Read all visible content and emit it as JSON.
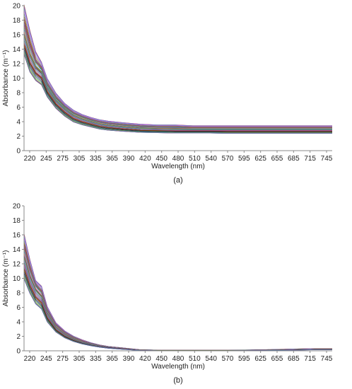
{
  "chart_data": [
    {
      "type": "line",
      "panel_label": "(a)",
      "xlabel": "Wavelength (nm)",
      "ylabel": "Absorbance (m⁻¹)",
      "xticks": [
        "220",
        "245",
        "275",
        "305",
        "335",
        "365",
        "390",
        "420",
        "450",
        "480",
        "510",
        "540",
        "570",
        "595",
        "625",
        "655",
        "685",
        "715",
        "745"
      ],
      "yticks": [
        "0",
        "2",
        "4",
        "6",
        "8",
        "10",
        "12",
        "14",
        "16",
        "18",
        "20"
      ],
      "ylim": [
        0,
        20
      ],
      "grid": false,
      "legend": "none",
      "series_count": 60,
      "x": [
        220,
        230,
        240,
        250,
        260,
        275,
        290,
        305,
        320,
        335,
        350,
        365,
        390,
        420,
        450,
        480,
        510,
        540,
        570,
        600,
        630,
        660,
        690,
        720,
        750
      ],
      "series": [
        {
          "values": [
            20.0,
            16.5,
            13.5,
            12.0,
            9.8,
            7.8,
            6.4,
            5.5,
            4.9,
            4.5,
            4.2,
            4.0,
            3.8,
            3.6,
            3.5,
            3.5,
            3.4,
            3.4,
            3.4,
            3.4,
            3.4,
            3.4,
            3.4,
            3.4,
            3.4
          ]
        },
        {
          "values": [
            17.0,
            14.0,
            12.0,
            11.2,
            9.0,
            7.2,
            6.0,
            5.1,
            4.6,
            4.2,
            3.9,
            3.7,
            3.5,
            3.3,
            3.2,
            3.2,
            3.1,
            3.1,
            3.1,
            3.1,
            3.1,
            3.1,
            3.1,
            3.1,
            3.1
          ]
        },
        {
          "values": [
            15.0,
            12.5,
            11.0,
            10.3,
            8.3,
            6.6,
            5.5,
            4.6,
            4.1,
            3.8,
            3.5,
            3.3,
            3.1,
            2.9,
            2.85,
            2.8,
            2.8,
            2.8,
            2.8,
            2.8,
            2.8,
            2.8,
            2.8,
            2.8,
            2.8
          ]
        },
        {
          "values": [
            13.5,
            11.0,
            9.8,
            9.2,
            7.5,
            5.9,
            4.8,
            4.0,
            3.6,
            3.3,
            3.0,
            2.85,
            2.7,
            2.55,
            2.5,
            2.45,
            2.45,
            2.45,
            2.4,
            2.4,
            2.4,
            2.4,
            2.4,
            2.4,
            2.4
          ]
        }
      ]
    },
    {
      "type": "line",
      "panel_label": "(b)",
      "xlabel": "Wavelength (nm)",
      "ylabel": "Absorbance (m⁻¹)",
      "xticks": [
        "220",
        "245",
        "275",
        "305",
        "335",
        "365",
        "390",
        "420",
        "450",
        "480",
        "510",
        "540",
        "570",
        "595",
        "625",
        "655",
        "685",
        "715",
        "745"
      ],
      "yticks": [
        "0",
        "2",
        "4",
        "6",
        "8",
        "10",
        "12",
        "14",
        "16",
        "18",
        "20"
      ],
      "ylim": [
        0,
        20
      ],
      "grid": false,
      "legend": "none",
      "series_count": 60,
      "x": [
        220,
        230,
        240,
        250,
        260,
        275,
        290,
        305,
        320,
        335,
        350,
        365,
        390,
        420,
        450,
        480,
        510,
        540,
        570,
        600,
        630,
        660,
        690,
        720,
        750
      ],
      "series": [
        {
          "values": [
            16.0,
            12.5,
            9.5,
            8.8,
            6.0,
            3.8,
            2.7,
            2.0,
            1.5,
            1.1,
            0.8,
            0.6,
            0.4,
            0.15,
            0.1,
            0.1,
            0.1,
            0.1,
            0.1,
            0.1,
            0.15,
            0.2,
            0.25,
            0.3,
            0.3
          ]
        },
        {
          "values": [
            14.0,
            11.0,
            9.0,
            8.0,
            5.5,
            3.5,
            2.5,
            1.8,
            1.3,
            1.0,
            0.75,
            0.55,
            0.35,
            0.12,
            0.08,
            0.08,
            0.08,
            0.08,
            0.08,
            0.1,
            0.12,
            0.15,
            0.2,
            0.25,
            0.25
          ]
        },
        {
          "values": [
            12.0,
            9.5,
            7.8,
            7.0,
            4.8,
            3.0,
            2.1,
            1.5,
            1.1,
            0.8,
            0.6,
            0.45,
            0.3,
            0.08,
            0.05,
            0.05,
            0.05,
            0.05,
            0.05,
            0.06,
            0.08,
            0.1,
            0.15,
            0.2,
            0.2
          ]
        },
        {
          "values": [
            10.0,
            8.0,
            6.5,
            5.8,
            4.0,
            2.6,
            1.8,
            1.3,
            0.95,
            0.7,
            0.5,
            0.35,
            0.2,
            0.05,
            0.02,
            0.02,
            0.02,
            0.02,
            0.02,
            0.03,
            0.05,
            0.08,
            0.1,
            0.15,
            0.15
          ]
        }
      ]
    }
  ]
}
